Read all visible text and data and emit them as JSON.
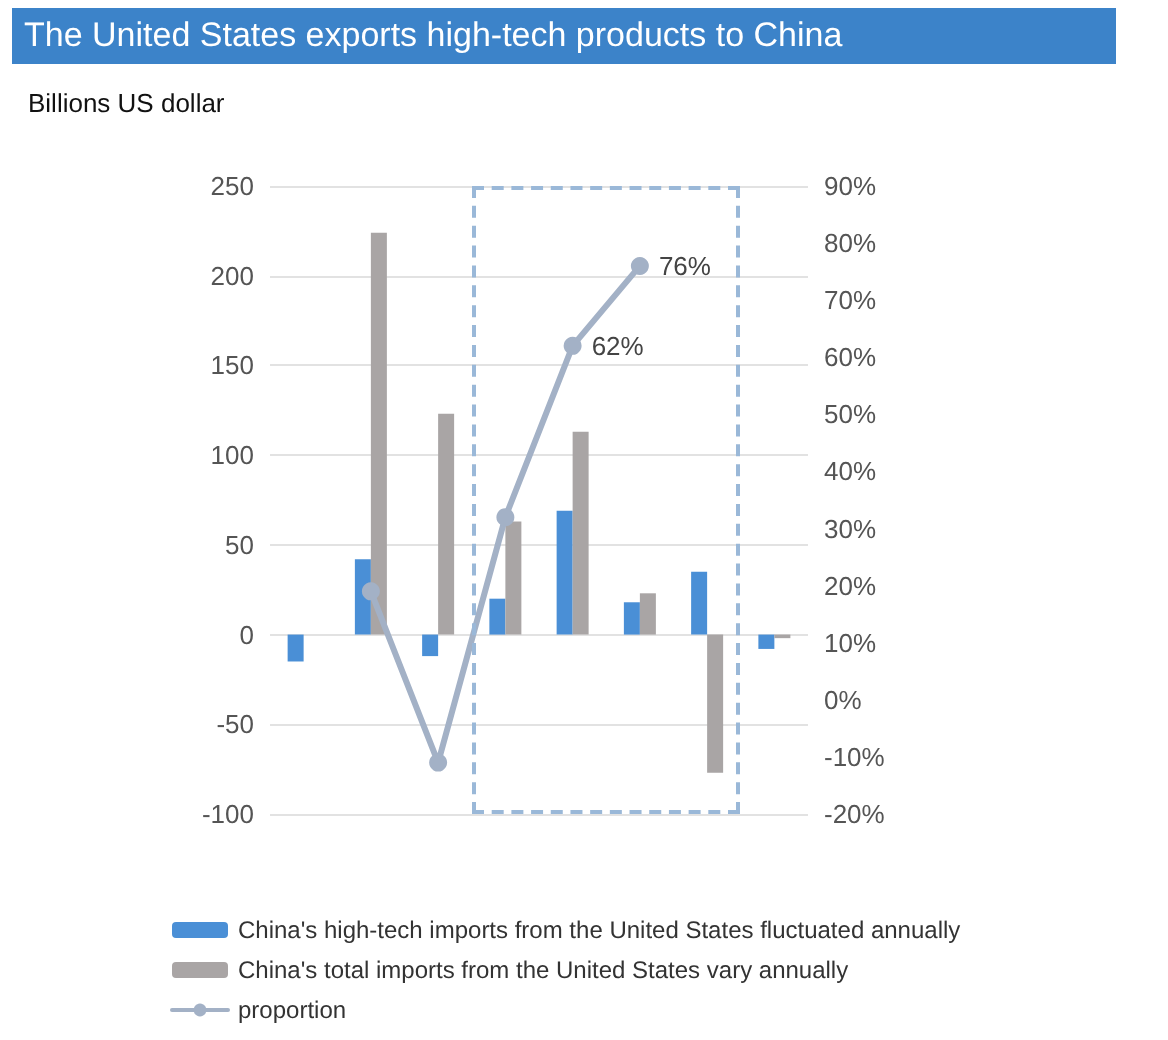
{
  "chart_data": {
    "type": "bar",
    "title": "The United States exports high-tech products to China",
    "ylabel": "Billions US dollar",
    "categories": [
      null,
      null,
      null,
      null,
      null,
      null,
      null,
      null
    ],
    "series": [
      {
        "name": "China's high-tech imports from the United States fluctuated annually",
        "color": "#4a8fd6",
        "values": [
          -15,
          42,
          -12,
          20,
          69,
          18,
          35,
          -8
        ]
      },
      {
        "name": "China's total imports from the United States vary annually",
        "color": "#a9a5a5",
        "values": [
          null,
          224,
          123,
          63,
          113,
          23,
          -77,
          -2
        ]
      },
      {
        "name": "proportion",
        "type": "line",
        "axis": "y2",
        "color": "#a3b1c6",
        "marker": "circle",
        "values": [
          null,
          19,
          -11,
          32,
          62,
          76,
          null,
          null
        ],
        "value_labels": [
          null,
          null,
          null,
          null,
          "62%",
          "76%",
          null,
          null
        ]
      }
    ],
    "ylim": [
      -100,
      250
    ],
    "yticks": [
      -100,
      -50,
      0,
      50,
      100,
      150,
      200,
      250
    ],
    "y2lim": [
      -20,
      90
    ],
    "y2ticks": [
      {
        "value": -20,
        "label": "-20%"
      },
      {
        "value": -10,
        "label": "-10%"
      },
      {
        "value": 0,
        "label": "0%"
      },
      {
        "value": 10,
        "label": "10%"
      },
      {
        "value": 20,
        "label": "20%"
      },
      {
        "value": 30,
        "label": "30%"
      },
      {
        "value": 40,
        "label": "40%"
      },
      {
        "value": 50,
        "label": "50%"
      },
      {
        "value": 60,
        "label": "60%"
      },
      {
        "value": 70,
        "label": "70%"
      },
      {
        "value": 80,
        "label": "80%"
      },
      {
        "value": 90,
        "label": "90%"
      }
    ],
    "grid": "y",
    "legend": "bottom"
  }
}
